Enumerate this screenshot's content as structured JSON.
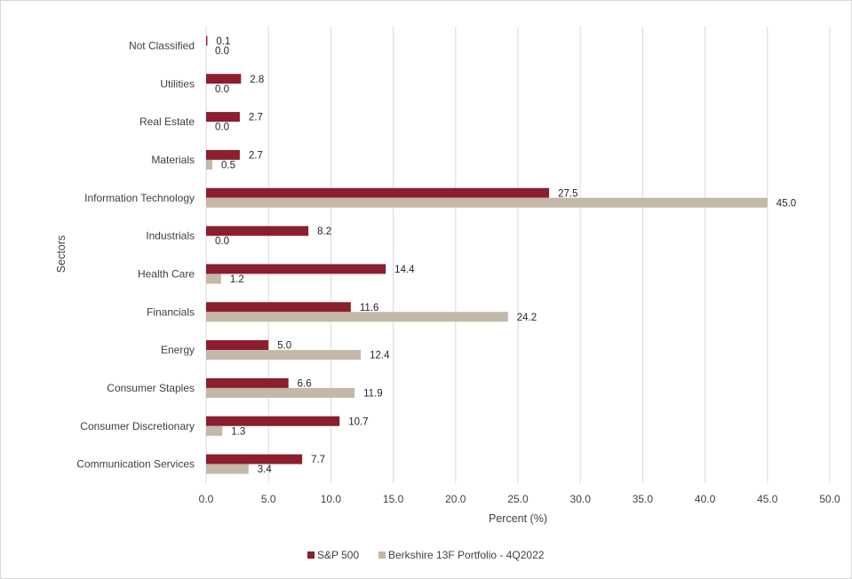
{
  "chart_data": {
    "type": "bar",
    "orientation": "horizontal",
    "categories": [
      "Communication Services",
      "Consumer Discretionary",
      "Consumer Staples",
      "Energy",
      "Financials",
      "Health Care",
      "Industrials",
      "Information Technology",
      "Materials",
      "Real Estate",
      "Utilities",
      "Not Classified"
    ],
    "series": [
      {
        "name": "S&P 500",
        "color": "#8b1e2f",
        "values": [
          7.7,
          10.7,
          6.6,
          5.0,
          11.6,
          14.4,
          8.2,
          27.5,
          2.7,
          2.7,
          2.8,
          0.1
        ]
      },
      {
        "name": "Berkshire 13F Portfolio - 4Q2022",
        "color": "#c4b8a8",
        "values": [
          3.4,
          1.3,
          11.9,
          12.4,
          24.2,
          1.2,
          0.0,
          45.0,
          0.5,
          0.0,
          0.0,
          0.0
        ]
      }
    ],
    "xlabel": "Percent (%)",
    "ylabel": "Sectors",
    "xlim": [
      0,
      50
    ],
    "xticks": [
      "0.0",
      "5.0",
      "10.0",
      "15.0",
      "20.0",
      "25.0",
      "30.0",
      "35.0",
      "40.0",
      "45.0",
      "50.0"
    ],
    "grid": "vertical",
    "legend_position": "bottom",
    "data_labels": true
  }
}
